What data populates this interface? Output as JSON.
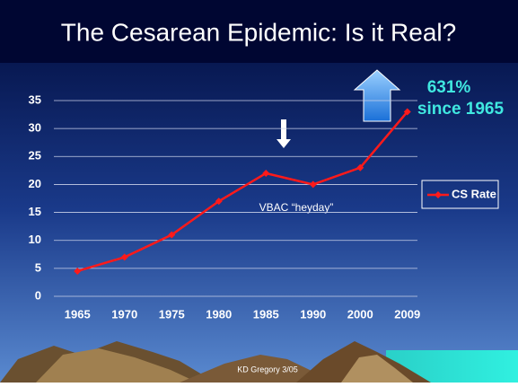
{
  "chart_data": {
    "type": "line",
    "title": "The Cesarean Epidemic:  Is it Real?",
    "categories": [
      "1965",
      "1970",
      "1975",
      "1980",
      "1985",
      "1990",
      "2000",
      "2009"
    ],
    "series": [
      {
        "name": "CS Rate",
        "color": "#ff1a1a",
        "values": [
          4.5,
          7,
          11,
          17,
          22,
          20,
          23,
          33
        ]
      }
    ],
    "ylim": [
      0,
      35
    ],
    "yticks": [
      0,
      5,
      10,
      15,
      20,
      25,
      30,
      35
    ],
    "grid": true,
    "legend": "right",
    "annotations": [
      "631%",
      "since 1965",
      "VBAC “heyday”"
    ],
    "footer": "KD Gregory 3/05"
  }
}
